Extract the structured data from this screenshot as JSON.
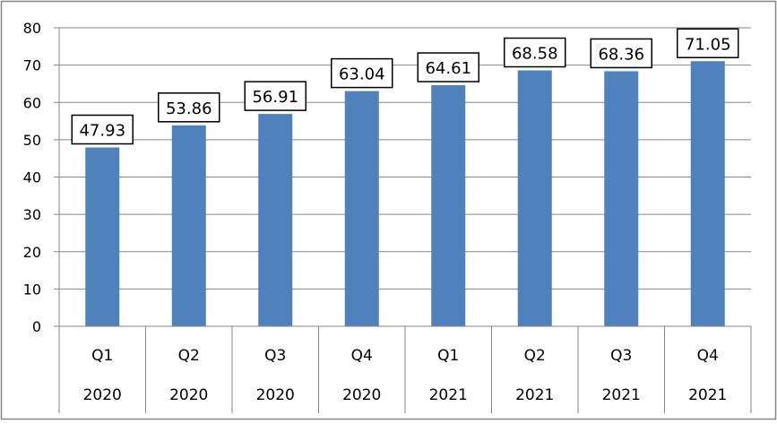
{
  "chart_data": {
    "type": "bar",
    "title": "",
    "xlabel": "",
    "ylabel": "",
    "categories": [
      {
        "quarter": "Q1",
        "year": "2020"
      },
      {
        "quarter": "Q2",
        "year": "2020"
      },
      {
        "quarter": "Q3",
        "year": "2020"
      },
      {
        "quarter": "Q4",
        "year": "2020"
      },
      {
        "quarter": "Q1",
        "year": "2021"
      },
      {
        "quarter": "Q2",
        "year": "2021"
      },
      {
        "quarter": "Q3",
        "year": "2021"
      },
      {
        "quarter": "Q4",
        "year": "2021"
      }
    ],
    "values": [
      47.93,
      53.86,
      56.91,
      63.04,
      64.61,
      68.58,
      68.36,
      71.05
    ],
    "data_labels": [
      "47.93",
      "53.86",
      "56.91",
      "63.04",
      "64.61",
      "68.58",
      "68.36",
      "71.05"
    ],
    "ylim": [
      0,
      80
    ],
    "yticks": [
      "0",
      "10",
      "20",
      "30",
      "40",
      "50",
      "60",
      "70",
      "80"
    ],
    "grid": true,
    "legend": "none",
    "colors": {
      "bar": "#4f81bd",
      "grid": "#868686",
      "axis": "#868686",
      "text": "#000000",
      "label_box_border": "#000000",
      "label_box_fill": "#ffffff",
      "frame": "#868686"
    }
  }
}
